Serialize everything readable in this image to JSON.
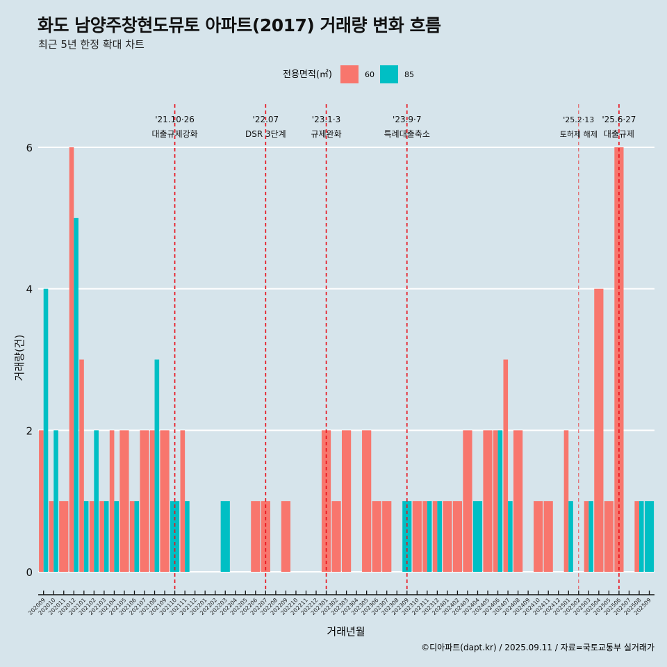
{
  "header": {
    "title": "화도 남양주창현도뮤토 아파트(2017) 거래량 변화 흐름",
    "subtitle": "최근 5년 한정 확대 차트"
  },
  "caption": "©디아파트(dapt.kr) / 2025.09.11 / 자료=국토교통부 실거래가",
  "chart_data": {
    "type": "bar",
    "title": "화도 남양주창현도뮤토 아파트(2017) 거래량 변화 흐름",
    "xlabel": "거래년월",
    "ylabel": "거래량(건)",
    "ylim": [
      0,
      6
    ],
    "yticks": [
      "0",
      "2",
      "4",
      "6"
    ],
    "legend": {
      "title": "전용면적(㎡)",
      "position": "top",
      "entries": [
        "60",
        "85"
      ]
    },
    "colors": {
      "60": "#f8766d",
      "85": "#00bfc4"
    },
    "categories": [
      "202009",
      "202010",
      "202011",
      "202012",
      "202101",
      "202102",
      "202103",
      "202104",
      "202105",
      "202106",
      "202107",
      "202108",
      "202109",
      "202110",
      "202111",
      "202112",
      "202201",
      "202202",
      "202203",
      "202204",
      "202205",
      "202206",
      "202207",
      "202208",
      "202209",
      "202210",
      "202211",
      "202212",
      "202301",
      "202302",
      "202303",
      "202304",
      "202305",
      "202306",
      "202307",
      "202308",
      "202309",
      "202310",
      "202311",
      "202312",
      "202401",
      "202402",
      "202403",
      "202404",
      "202405",
      "202406",
      "202407",
      "202408",
      "202409",
      "202410",
      "202411",
      "202412",
      "202501",
      "202502",
      "202503",
      "202504",
      "202505",
      "202506",
      "202507",
      "202508",
      "202509"
    ],
    "series": [
      {
        "name": "60",
        "values": [
          2,
          1,
          1,
          6,
          3,
          1,
          1,
          2,
          2,
          1,
          2,
          2,
          2,
          0,
          2,
          0,
          0,
          0,
          0,
          0,
          0,
          1,
          1,
          0,
          1,
          0,
          0,
          0,
          2,
          1,
          2,
          0,
          2,
          1,
          1,
          0,
          0,
          1,
          1,
          1,
          1,
          1,
          2,
          0,
          2,
          2,
          3,
          2,
          0,
          1,
          1,
          0,
          2,
          0,
          1,
          4,
          1,
          6,
          0,
          1,
          0
        ]
      },
      {
        "name": "85",
        "values": [
          4,
          2,
          0,
          5,
          1,
          2,
          1,
          1,
          0,
          1,
          0,
          3,
          0,
          1,
          1,
          0,
          0,
          0,
          1,
          0,
          0,
          0,
          0,
          0,
          0,
          0,
          0,
          0,
          0,
          0,
          0,
          0,
          0,
          0,
          0,
          0,
          1,
          0,
          1,
          1,
          0,
          0,
          0,
          1,
          0,
          2,
          1,
          0,
          0,
          0,
          0,
          0,
          1,
          0,
          1,
          0,
          0,
          0,
          0,
          1,
          1
        ]
      }
    ],
    "annotations": [
      {
        "month": "202110",
        "date": "'21.10·26",
        "label": "대출규제강화",
        "style": "bold"
      },
      {
        "month": "202207",
        "date": "'22.07",
        "label": "DSR 3단계",
        "style": "bold"
      },
      {
        "month": "202301",
        "date": "'23.1·3",
        "label": "규제완화",
        "style": "bold"
      },
      {
        "month": "202309",
        "date": "'23.9·7",
        "label": "특례대출축소",
        "style": "bold"
      },
      {
        "month": "202502",
        "date": "'25.2·13",
        "label": "토허제 해제",
        "style": "thin"
      },
      {
        "month": "202506",
        "date": "'25.6·27",
        "label": "대출규제",
        "style": "bold"
      }
    ]
  }
}
